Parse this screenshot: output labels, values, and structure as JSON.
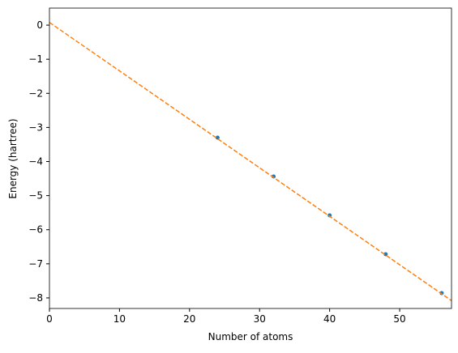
{
  "chart_data": {
    "type": "scatter",
    "xlabel": "Number of atoms",
    "ylabel": "Energy (hartree)",
    "x": [
      24,
      32,
      40,
      48,
      56
    ],
    "series": [
      {
        "color": "#1f77b4",
        "values": [
          -3.3,
          -4.44,
          -5.58,
          -6.72,
          -7.86
        ]
      }
    ],
    "fit": {
      "color": "#ff7f0e",
      "dashed": true,
      "x": [
        0,
        57.4
      ],
      "values": [
        0.08,
        -8.08
      ]
    },
    "xlim": [
      0,
      57.4
    ],
    "ylim": [
      -8.31,
      0.5
    ],
    "xticks": [
      0,
      10,
      20,
      30,
      40,
      50
    ],
    "yticks": [
      0,
      {
        "value": -1,
        "label": "−1"
      },
      {
        "value": -2,
        "label": "−2"
      },
      {
        "value": -3,
        "label": "−3"
      },
      {
        "value": -4,
        "label": "−4"
      },
      {
        "value": -5,
        "label": "−5"
      },
      {
        "value": -6,
        "label": "−6"
      },
      {
        "value": -7,
        "label": "−7"
      },
      {
        "value": -8,
        "label": "−8"
      }
    ]
  }
}
